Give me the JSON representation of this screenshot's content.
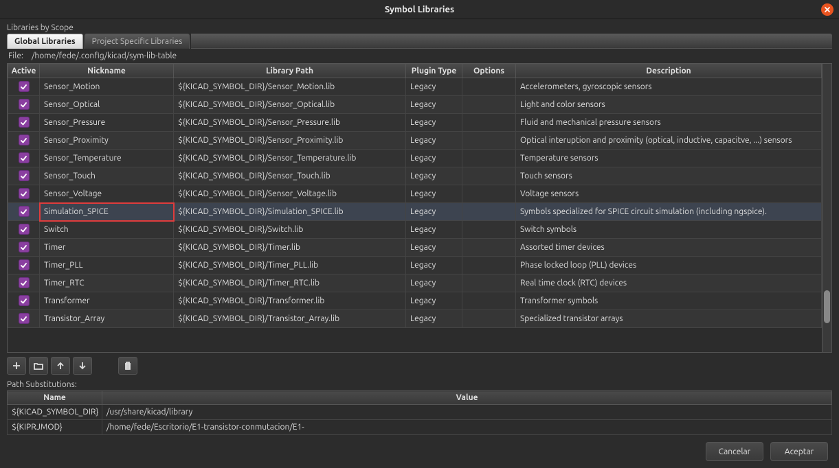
{
  "window": {
    "title": "Symbol Libraries"
  },
  "section_label": "Libraries by Scope",
  "tabs": {
    "global": "Global Libraries",
    "project": "Project Specific Libraries"
  },
  "file_label": "File:",
  "file_path": "/home/fede/.config/kicad/sym-lib-table",
  "columns": {
    "active": "Active",
    "nickname": "Nickname",
    "libpath": "Library Path",
    "plugin": "Plugin Type",
    "options": "Options",
    "description": "Description"
  },
  "rows": [
    {
      "active": true,
      "nickname": "Sensor_Motion",
      "path": "${KICAD_SYMBOL_DIR}/Sensor_Motion.lib",
      "plugin": "Legacy",
      "options": "",
      "desc": "Accelerometers, gyroscopic sensors"
    },
    {
      "active": true,
      "nickname": "Sensor_Optical",
      "path": "${KICAD_SYMBOL_DIR}/Sensor_Optical.lib",
      "plugin": "Legacy",
      "options": "",
      "desc": "Light and color sensors"
    },
    {
      "active": true,
      "nickname": "Sensor_Pressure",
      "path": "${KICAD_SYMBOL_DIR}/Sensor_Pressure.lib",
      "plugin": "Legacy",
      "options": "",
      "desc": "Fluid and mechanical pressure sensors"
    },
    {
      "active": true,
      "nickname": "Sensor_Proximity",
      "path": "${KICAD_SYMBOL_DIR}/Sensor_Proximity.lib",
      "plugin": "Legacy",
      "options": "",
      "desc": "Optical interuption and proximity (optical, inductive, capacitve, ...) sensors"
    },
    {
      "active": true,
      "nickname": "Sensor_Temperature",
      "path": "${KICAD_SYMBOL_DIR}/Sensor_Temperature.lib",
      "plugin": "Legacy",
      "options": "",
      "desc": "Temperature sensors"
    },
    {
      "active": true,
      "nickname": "Sensor_Touch",
      "path": "${KICAD_SYMBOL_DIR}/Sensor_Touch.lib",
      "plugin": "Legacy",
      "options": "",
      "desc": "Touch sensors"
    },
    {
      "active": true,
      "nickname": "Sensor_Voltage",
      "path": "${KICAD_SYMBOL_DIR}/Sensor_Voltage.lib",
      "plugin": "Legacy",
      "options": "",
      "desc": "Voltage sensors"
    },
    {
      "active": true,
      "nickname": "Simulation_SPICE",
      "path": "${KICAD_SYMBOL_DIR}/Simulation_SPICE.lib",
      "plugin": "Legacy",
      "options": "",
      "desc": "Symbols specialized for SPICE circuit simulation (including ngspice).",
      "selected": true
    },
    {
      "active": true,
      "nickname": "Switch",
      "path": "${KICAD_SYMBOL_DIR}/Switch.lib",
      "plugin": "Legacy",
      "options": "",
      "desc": "Switch symbols"
    },
    {
      "active": true,
      "nickname": "Timer",
      "path": "${KICAD_SYMBOL_DIR}/Timer.lib",
      "plugin": "Legacy",
      "options": "",
      "desc": "Assorted timer devices"
    },
    {
      "active": true,
      "nickname": "Timer_PLL",
      "path": "${KICAD_SYMBOL_DIR}/Timer_PLL.lib",
      "plugin": "Legacy",
      "options": "",
      "desc": "Phase locked loop (PLL) devices"
    },
    {
      "active": true,
      "nickname": "Timer_RTC",
      "path": "${KICAD_SYMBOL_DIR}/Timer_RTC.lib",
      "plugin": "Legacy",
      "options": "",
      "desc": "Real time clock (RTC) devices"
    },
    {
      "active": true,
      "nickname": "Transformer",
      "path": "${KICAD_SYMBOL_DIR}/Transformer.lib",
      "plugin": "Legacy",
      "options": "",
      "desc": "Transformer symbols"
    },
    {
      "active": true,
      "nickname": "Transistor_Array",
      "path": "${KICAD_SYMBOL_DIR}/Transistor_Array.lib",
      "plugin": "Legacy",
      "options": "",
      "desc": "Specialized transistor arrays"
    }
  ],
  "pathsub_label": "Path Substitutions:",
  "pathsub_columns": {
    "name": "Name",
    "value": "Value"
  },
  "pathsubs": [
    {
      "name": "${KICAD_SYMBOL_DIR}",
      "value": "/usr/share/kicad/library"
    },
    {
      "name": "${KIPRJMOD}",
      "value": "/home/fede/Escritorio/E1-transistor-conmutacion/E1-"
    }
  ],
  "buttons": {
    "cancel": "Cancelar",
    "accept": "Aceptar"
  }
}
